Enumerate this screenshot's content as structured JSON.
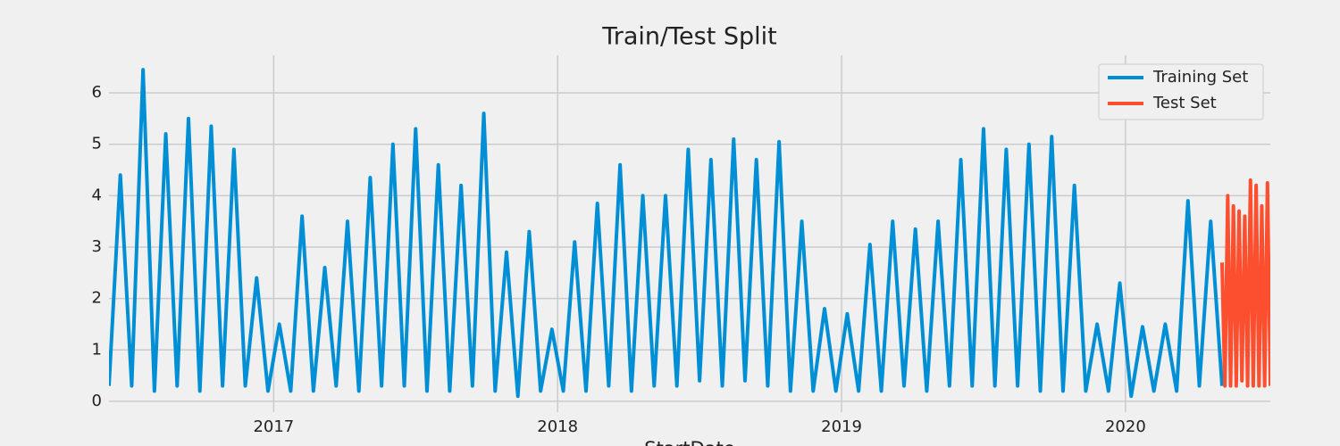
{
  "chart_data": {
    "type": "line",
    "title": "Train/Test Split",
    "xlabel": "StartDate",
    "xlim": [
      2016.42,
      2020.51
    ],
    "xticks": [
      2017,
      2018,
      2019,
      2020
    ],
    "ylim": [
      -0.21,
      6.73
    ],
    "yticks": [
      0,
      1,
      2,
      3,
      4,
      5,
      6
    ],
    "grid": true,
    "legend": "upper right",
    "series": [
      {
        "name": "Training Set",
        "color": "#008fd5",
        "x": [
          2016.42,
          2016.46,
          2016.5,
          2016.54,
          2016.58,
          2016.62,
          2016.66,
          2016.7,
          2016.74,
          2016.78,
          2016.82,
          2016.86,
          2016.9,
          2016.94,
          2016.98,
          2017.02,
          2017.06,
          2017.1,
          2017.14,
          2017.18,
          2017.22,
          2017.26,
          2017.3,
          2017.34,
          2017.38,
          2017.42,
          2017.46,
          2017.5,
          2017.54,
          2017.58,
          2017.62,
          2017.66,
          2017.7,
          2017.74,
          2017.78,
          2017.82,
          2017.86,
          2017.9,
          2017.94,
          2017.98,
          2018.02,
          2018.06,
          2018.1,
          2018.14,
          2018.18,
          2018.22,
          2018.26,
          2018.3,
          2018.34,
          2018.38,
          2018.42,
          2018.46,
          2018.5,
          2018.54,
          2018.58,
          2018.62,
          2018.66,
          2018.7,
          2018.74,
          2018.78,
          2018.82,
          2018.86,
          2018.9,
          2018.94,
          2018.98,
          2019.02,
          2019.06,
          2019.1,
          2019.14,
          2019.18,
          2019.22,
          2019.26,
          2019.3,
          2019.34,
          2019.38,
          2019.42,
          2019.46,
          2019.5,
          2019.54,
          2019.58,
          2019.62,
          2019.66,
          2019.7,
          2019.74,
          2019.78,
          2019.82,
          2019.86,
          2019.9,
          2019.94,
          2019.98,
          2020.02,
          2020.06,
          2020.1,
          2020.14,
          2020.18,
          2020.22,
          2020.26,
          2020.3,
          2020.34
        ],
        "values": [
          0.3,
          4.4,
          0.3,
          6.45,
          0.2,
          5.2,
          0.3,
          5.5,
          0.2,
          5.35,
          0.3,
          4.9,
          0.3,
          2.4,
          0.2,
          1.5,
          0.2,
          3.6,
          0.2,
          2.6,
          0.3,
          3.5,
          0.2,
          4.35,
          0.3,
          5.0,
          0.3,
          5.3,
          0.2,
          4.6,
          0.2,
          4.2,
          0.3,
          5.6,
          0.2,
          2.9,
          0.1,
          3.3,
          0.2,
          1.4,
          0.2,
          3.1,
          0.2,
          3.85,
          0.3,
          4.6,
          0.2,
          4.0,
          0.3,
          4.0,
          0.3,
          4.9,
          0.4,
          4.7,
          0.3,
          5.1,
          0.4,
          4.7,
          0.3,
          5.05,
          0.2,
          3.5,
          0.2,
          1.8,
          0.2,
          1.7,
          0.2,
          3.05,
          0.2,
          3.5,
          0.3,
          3.35,
          0.2,
          3.5,
          0.3,
          4.7,
          0.3,
          5.3,
          0.3,
          4.9,
          0.3,
          5.0,
          0.2,
          5.15,
          0.2,
          4.2,
          0.2,
          1.5,
          0.2,
          2.3,
          0.1,
          1.45,
          0.2,
          1.5,
          0.2,
          3.9,
          0.3,
          3.5,
          0.3
        ]
      },
      {
        "name": "Test Set",
        "color": "#fc4f30",
        "x": [
          2020.34,
          2020.35,
          2020.36,
          2020.37,
          2020.38,
          2020.39,
          2020.4,
          2020.41,
          2020.42,
          2020.43,
          2020.44,
          2020.45,
          2020.46,
          2020.47,
          2020.48,
          2020.49,
          2020.5,
          2020.51
        ],
        "values": [
          2.7,
          0.3,
          4.0,
          0.3,
          3.8,
          0.3,
          3.7,
          0.4,
          3.6,
          0.3,
          4.3,
          0.3,
          4.2,
          0.3,
          3.8,
          0.3,
          4.25,
          0.3
        ]
      }
    ]
  }
}
